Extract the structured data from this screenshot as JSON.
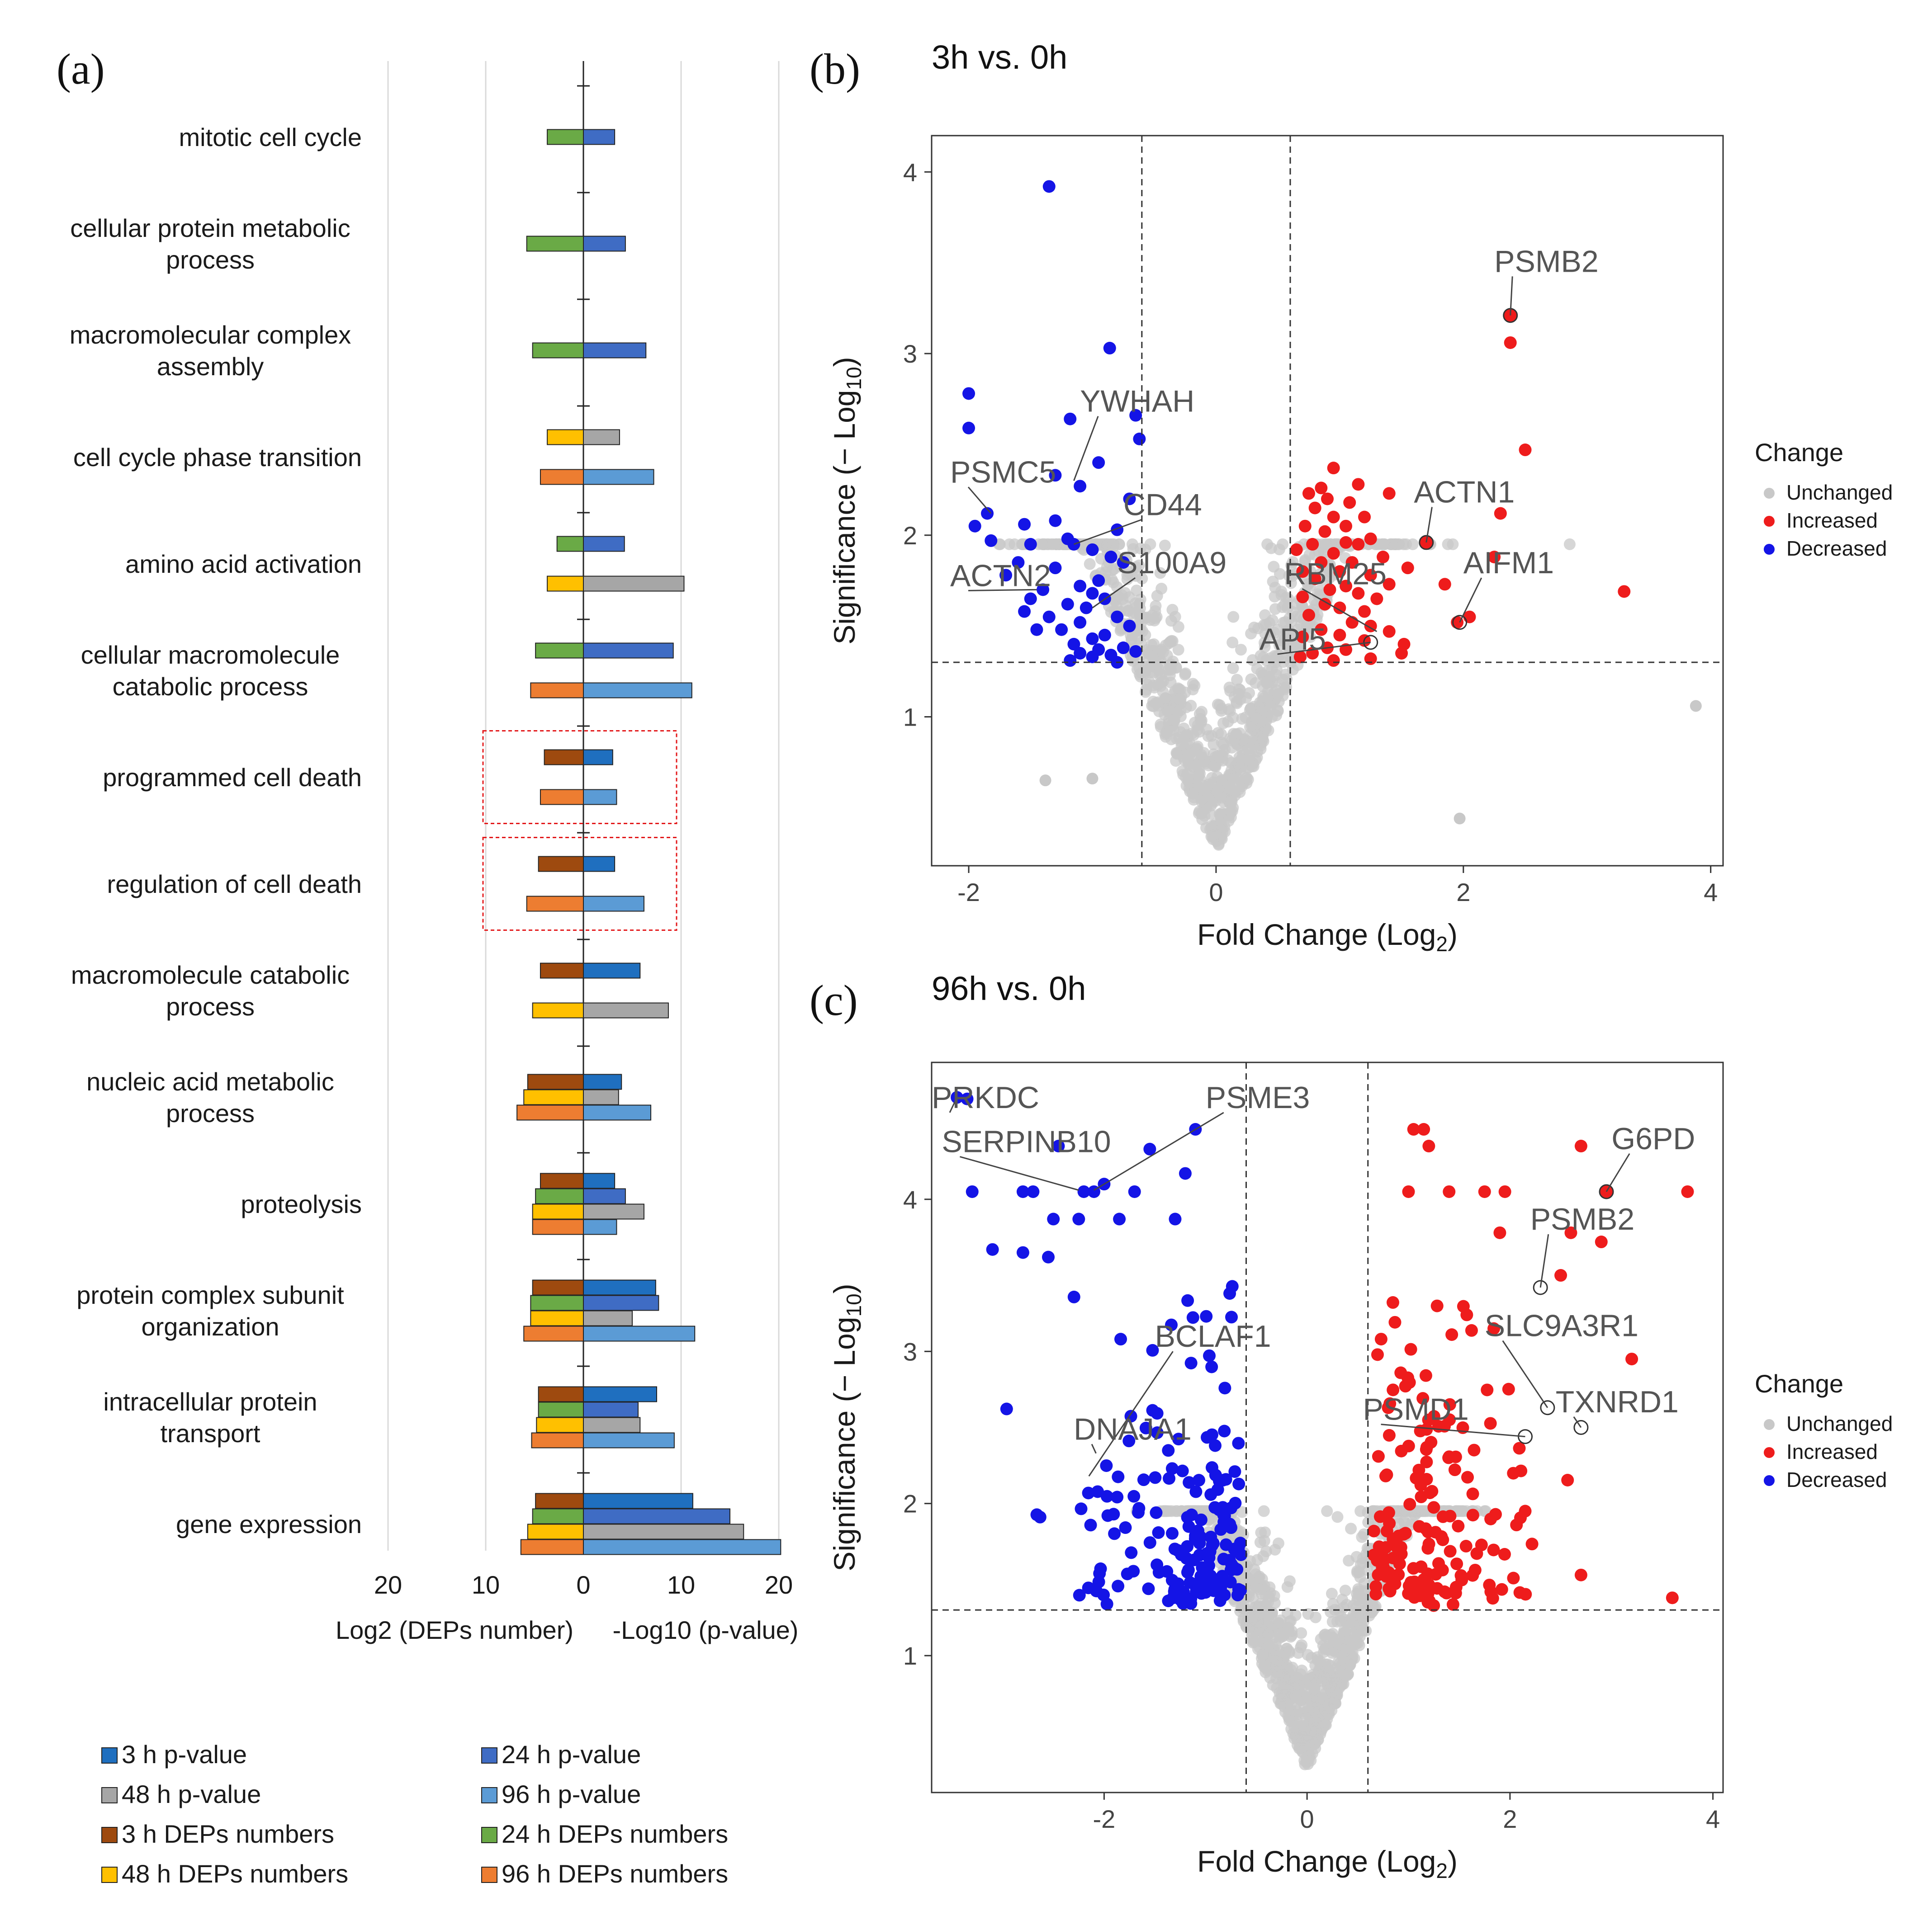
{
  "figure": {
    "panels": [
      {
        "id": "a",
        "label": "(a)"
      },
      {
        "id": "b",
        "label": "(b)",
        "title": "3h vs. 0h"
      },
      {
        "id": "c",
        "label": "(c)",
        "title": "96h vs. 0h"
      }
    ]
  },
  "chart_data": [
    {
      "panel": "a",
      "type": "bar",
      "orientation": "horizontal-diverging",
      "xlabel_left": "Log2 (DEPs number)",
      "xlabel_right": "-Log10  (p-value)",
      "left_axis_ticks": [
        20,
        10,
        0
      ],
      "right_axis_ticks": [
        10,
        20
      ],
      "xlim_left": [
        0,
        20
      ],
      "xlim_right": [
        0,
        20
      ],
      "legend": [
        {
          "key": "p3",
          "label": "3 h p-value",
          "color": "#1f6fbf"
        },
        {
          "key": "p24",
          "label": "24 h p-value",
          "color": "#3f6cc4"
        },
        {
          "key": "p48",
          "label": "48 h p-value",
          "color": "#a6a6a6"
        },
        {
          "key": "p96",
          "label": "96 h p-value",
          "color": "#5b9bd5"
        },
        {
          "key": "d3",
          "label": "3 h DEPs numbers",
          "color": "#9e4a0f"
        },
        {
          "key": "d24",
          "label": "24 h DEPs numbers",
          "color": "#6aaa46"
        },
        {
          "key": "d48",
          "label": "48 h DEPs numbers",
          "color": "#ffc000"
        },
        {
          "key": "d96",
          "label": "96 h DEPs numbers",
          "color": "#ed7d31"
        }
      ],
      "categories": [
        {
          "label": "mitotic cell cycle",
          "deps": {
            "d24": 3.7
          },
          "pval": {
            "p24": 3.2
          }
        },
        {
          "label": "cellular protein metabolic\nprocess",
          "deps": {
            "d24": 5.8
          },
          "pval": {
            "p24": 4.3
          }
        },
        {
          "label": "macromolecular complex\nassembly",
          "deps": {
            "d24": 5.2
          },
          "pval": {
            "p24": 6.4
          }
        },
        {
          "label": "cell cycle phase transition",
          "deps": {
            "d48": 3.7,
            "d96": 4.4
          },
          "pval": {
            "p48": 3.7,
            "p96": 7.2
          }
        },
        {
          "label": "amino acid activation",
          "deps": {
            "d24": 2.7,
            "d48": 3.7
          },
          "pval": {
            "p24": 4.2,
            "p48": 10.3
          }
        },
        {
          "label": "cellular macromolecule\ncatabolic process",
          "deps": {
            "d24": 4.9,
            "d96": 5.4
          },
          "pval": {
            "p24": 9.2,
            "p96": 11.1
          }
        },
        {
          "label": "programmed cell death",
          "deps": {
            "d3": 4.0,
            "d96": 4.4
          },
          "pval": {
            "p3": 3.0,
            "p96": 3.4
          },
          "highlight": true
        },
        {
          "label": "regulation of cell death",
          "deps": {
            "d3": 4.6,
            "d96": 5.8
          },
          "pval": {
            "p3": 3.2,
            "p96": 6.2
          },
          "highlight": true
        },
        {
          "label": "macromolecule catabolic\nprocess",
          "deps": {
            "d3": 4.4,
            "d48": 5.2
          },
          "pval": {
            "p3": 5.8,
            "p48": 8.7
          }
        },
        {
          "label": "nucleic acid metabolic\nprocess",
          "deps": {
            "d3": 5.7,
            "d48": 6.1,
            "d96": 6.8
          },
          "pval": {
            "p3": 3.9,
            "p48": 3.6,
            "p96": 6.9
          }
        },
        {
          "label": "proteolysis",
          "deps": {
            "d3": 4.4,
            "d24": 4.9,
            "d48": 5.2,
            "d96": 5.2
          },
          "pval": {
            "p3": 3.2,
            "p24": 4.3,
            "p48": 6.2,
            "p96": 3.4
          }
        },
        {
          "label": "protein complex subunit\norganization",
          "deps": {
            "d3": 5.2,
            "d24": 5.4,
            "d48": 5.4,
            "d96": 6.1
          },
          "pval": {
            "p3": 7.4,
            "p24": 7.7,
            "p48": 5.0,
            "p96": 11.4
          }
        },
        {
          "label": "intracellular protein\ntransport",
          "deps": {
            "d3": 4.6,
            "d24": 4.6,
            "d48": 4.8,
            "d96": 5.3
          },
          "pval": {
            "p3": 7.5,
            "p24": 5.6,
            "p48": 5.8,
            "p96": 9.3
          }
        },
        {
          "label": "gene expression",
          "deps": {
            "d3": 4.9,
            "d24": 5.2,
            "d48": 5.7,
            "d96": 6.4
          },
          "pval": {
            "p3": 11.2,
            "p24": 15.0,
            "p48": 16.4,
            "p96": 20.2
          }
        }
      ]
    },
    {
      "panel": "b",
      "type": "scatter",
      "title": "3h vs. 0h",
      "xlabel": "Fold Change (Log",
      "xlabel_sub": "2",
      "xlabel_end": ")",
      "ylabel": "Significance (− Log",
      "ylabel_sub": "10",
      "ylabel_end": ")",
      "xlim": [
        -2.3,
        4.1
      ],
      "ylim": [
        0.18,
        4.2
      ],
      "xticks": [
        -2,
        0,
        2,
        4
      ],
      "xtick_labels": [
        "-2",
        "0",
        "2",
        "4"
      ],
      "yticks": [
        1,
        2,
        3,
        4
      ],
      "ytick_labels": [
        "1",
        "2",
        "3",
        "4"
      ],
      "vlines": [
        -0.6,
        0.6
      ],
      "hline": 1.3,
      "legend_title": "Change",
      "legend_entries": [
        {
          "label": "Unchanged",
          "color": "#c8c8c8"
        },
        {
          "label": "Increased",
          "color": "#ee1c1c"
        },
        {
          "label": "Decreased",
          "color": "#1414e6"
        }
      ],
      "gray_seed": 11,
      "gray_count": 950,
      "decreased": [
        [
          -1.35,
          3.92
        ],
        [
          -0.86,
          3.03
        ],
        [
          -2.0,
          2.78
        ],
        [
          -0.65,
          2.66
        ],
        [
          -1.18,
          2.64
        ],
        [
          -2.0,
          2.59
        ],
        [
          -0.62,
          2.53
        ],
        [
          -0.95,
          2.4
        ],
        [
          -1.3,
          2.33
        ],
        [
          -1.1,
          2.27
        ],
        [
          -0.7,
          2.2
        ],
        [
          -1.85,
          2.12
        ],
        [
          -1.3,
          2.08
        ],
        [
          -1.55,
          2.06
        ],
        [
          -1.95,
          2.05
        ],
        [
          -0.8,
          2.03
        ],
        [
          -1.2,
          1.98
        ],
        [
          -1.82,
          1.97
        ],
        [
          -1.5,
          1.95
        ],
        [
          -1.15,
          1.95
        ],
        [
          -1.0,
          1.92
        ],
        [
          -0.85,
          1.88
        ],
        [
          -1.6,
          1.85
        ],
        [
          -0.75,
          1.85
        ],
        [
          -1.3,
          1.82
        ],
        [
          -1.7,
          1.78
        ],
        [
          -0.95,
          1.75
        ],
        [
          -1.1,
          1.72
        ],
        [
          -1.4,
          1.7
        ],
        [
          -1.0,
          1.68
        ],
        [
          -1.5,
          1.65
        ],
        [
          -0.9,
          1.65
        ],
        [
          -1.2,
          1.62
        ],
        [
          -1.05,
          1.6
        ],
        [
          -1.55,
          1.58
        ],
        [
          -1.35,
          1.55
        ],
        [
          -0.8,
          1.55
        ],
        [
          -1.1,
          1.52
        ],
        [
          -0.7,
          1.5
        ],
        [
          -1.45,
          1.48
        ],
        [
          -1.25,
          1.48
        ],
        [
          -0.9,
          1.45
        ],
        [
          -1.0,
          1.43
        ],
        [
          -1.15,
          1.4
        ],
        [
          -0.75,
          1.38
        ],
        [
          -0.95,
          1.37
        ],
        [
          -0.65,
          1.36
        ],
        [
          -1.1,
          1.35
        ],
        [
          -0.85,
          1.34
        ],
        [
          -1.0,
          1.33
        ],
        [
          -1.18,
          1.31
        ],
        [
          -0.8,
          1.3
        ]
      ],
      "increased": [
        [
          2.38,
          3.21
        ],
        [
          2.38,
          3.06
        ],
        [
          2.5,
          2.47
        ],
        [
          0.95,
          2.37
        ],
        [
          1.15,
          2.28
        ],
        [
          0.85,
          2.26
        ],
        [
          0.75,
          2.23
        ],
        [
          1.4,
          2.23
        ],
        [
          0.9,
          2.2
        ],
        [
          1.08,
          2.18
        ],
        [
          0.8,
          2.15
        ],
        [
          2.3,
          2.12
        ],
        [
          0.95,
          2.1
        ],
        [
          1.2,
          2.1
        ],
        [
          1.05,
          2.05
        ],
        [
          0.72,
          2.05
        ],
        [
          0.88,
          2.02
        ],
        [
          1.25,
          1.98
        ],
        [
          1.05,
          1.96
        ],
        [
          1.7,
          1.96
        ],
        [
          0.78,
          1.95
        ],
        [
          1.15,
          1.95
        ],
        [
          0.65,
          1.92
        ],
        [
          0.95,
          1.9
        ],
        [
          2.25,
          1.88
        ],
        [
          1.35,
          1.88
        ],
        [
          0.85,
          1.85
        ],
        [
          1.1,
          1.85
        ],
        [
          1.55,
          1.82
        ],
        [
          0.7,
          1.8
        ],
        [
          1.0,
          1.8
        ],
        [
          1.25,
          1.78
        ],
        [
          0.8,
          1.76
        ],
        [
          1.85,
          1.73
        ],
        [
          1.4,
          1.73
        ],
        [
          1.05,
          1.72
        ],
        [
          3.3,
          1.69
        ],
        [
          0.92,
          1.7
        ],
        [
          1.15,
          1.68
        ],
        [
          0.7,
          1.66
        ],
        [
          1.3,
          1.65
        ],
        [
          0.88,
          1.62
        ],
        [
          1.0,
          1.6
        ],
        [
          1.2,
          1.58
        ],
        [
          2.05,
          1.55
        ],
        [
          0.75,
          1.56
        ],
        [
          1.95,
          1.52
        ],
        [
          1.1,
          1.52
        ],
        [
          1.25,
          1.5
        ],
        [
          0.85,
          1.48
        ],
        [
          1.4,
          1.47
        ],
        [
          1.0,
          1.45
        ],
        [
          0.7,
          1.44
        ],
        [
          1.2,
          1.42
        ],
        [
          1.52,
          1.4
        ],
        [
          0.9,
          1.38
        ],
        [
          1.05,
          1.37
        ],
        [
          0.78,
          1.35
        ],
        [
          1.5,
          1.35
        ],
        [
          0.68,
          1.33
        ],
        [
          1.25,
          1.32
        ],
        [
          0.95,
          1.31
        ]
      ],
      "labels": [
        {
          "text": "PSMB2",
          "x": 2.38,
          "y": 3.21,
          "lx": 2.25,
          "ly": 3.45
        },
        {
          "text": "YWHAH",
          "x": -1.15,
          "y": 2.3,
          "lx": -1.1,
          "ly": 2.68
        },
        {
          "text": "PSMC5",
          "x": -1.82,
          "y": 2.12,
          "lx": -2.15,
          "ly": 2.29
        },
        {
          "text": "CD44",
          "x": -1.15,
          "y": 1.95,
          "lx": -0.75,
          "ly": 2.11
        },
        {
          "text": "ACTN1",
          "x": 1.7,
          "y": 1.96,
          "lx": 1.6,
          "ly": 2.18
        },
        {
          "text": "ACTN2",
          "x": -1.45,
          "y": 1.7,
          "lx": -2.15,
          "ly": 1.72
        },
        {
          "text": "S100A9",
          "x": -1.0,
          "y": 1.6,
          "lx": -0.8,
          "ly": 1.79
        },
        {
          "text": "RBM25",
          "x": 1.3,
          "y": 1.47,
          "lx": 0.55,
          "ly": 1.73
        },
        {
          "text": "AIFM1",
          "x": 1.97,
          "y": 1.52,
          "lx": 2.0,
          "ly": 1.79
        },
        {
          "text": "API5",
          "x": 1.25,
          "y": 1.41,
          "lx": 0.35,
          "ly": 1.37
        }
      ],
      "outlined": [
        [
          2.38,
          3.21
        ],
        [
          1.7,
          1.96
        ],
        [
          1.97,
          1.52
        ],
        [
          1.25,
          1.41
        ]
      ],
      "extra_gray": [
        [
          3.88,
          1.06
        ],
        [
          1.97,
          0.44
        ],
        [
          -1.38,
          0.65
        ],
        [
          -1.0,
          0.66
        ]
      ]
    },
    {
      "panel": "c",
      "type": "scatter",
      "title": "96h vs. 0h",
      "xlabel": "Fold Change (Log",
      "xlabel_sub": "2",
      "xlabel_end": ")",
      "ylabel": "Significance (− Log",
      "ylabel_sub": "10",
      "ylabel_end": ")",
      "xlim": [
        -3.7,
        4.1
      ],
      "ylim": [
        0.1,
        4.9
      ],
      "xticks": [
        -2,
        0,
        2,
        4
      ],
      "xtick_labels": [
        "-2",
        "0",
        "2",
        "4"
      ],
      "yticks": [
        1,
        2,
        3,
        4
      ],
      "ytick_labels": [
        "1",
        "2",
        "3",
        "4"
      ],
      "vlines": [
        -0.6,
        0.6
      ],
      "hline": 1.3,
      "legend_title": "Change",
      "legend_entries": [
        {
          "label": "Unchanged",
          "color": "#c8c8c8"
        },
        {
          "label": "Increased",
          "color": "#ee1c1c"
        },
        {
          "label": "Decreased",
          "color": "#1414e6"
        }
      ],
      "gray_seed": 29,
      "gray_count": 1000,
      "blue_seed": 7,
      "blue_count": 170,
      "red_seed": 17,
      "red_count": 170,
      "decreased": [
        [
          -3.45,
          4.67
        ],
        [
          -3.35,
          4.66
        ],
        [
          -1.1,
          4.46
        ],
        [
          -2.45,
          4.35
        ],
        [
          -1.55,
          4.33
        ],
        [
          -1.2,
          4.17
        ],
        [
          -3.3,
          4.05
        ],
        [
          -2.8,
          4.05
        ],
        [
          -2.7,
          4.05
        ],
        [
          -2.2,
          4.05
        ],
        [
          -2.1,
          4.05
        ],
        [
          -2.0,
          4.1
        ],
        [
          -1.7,
          4.05
        ],
        [
          -2.5,
          3.87
        ],
        [
          -2.25,
          3.87
        ],
        [
          -1.85,
          3.87
        ],
        [
          -1.3,
          3.87
        ],
        [
          -3.1,
          3.67
        ],
        [
          -2.8,
          3.65
        ],
        [
          -2.55,
          3.62
        ]
      ],
      "increased": [
        [
          1.05,
          4.46
        ],
        [
          1.15,
          4.46
        ],
        [
          2.7,
          4.35
        ],
        [
          1.2,
          4.35
        ],
        [
          2.95,
          4.05
        ],
        [
          3.75,
          4.05
        ],
        [
          1.0,
          4.05
        ],
        [
          1.4,
          4.05
        ],
        [
          1.75,
          4.05
        ],
        [
          1.95,
          4.05
        ],
        [
          1.9,
          3.78
        ],
        [
          2.6,
          3.78
        ],
        [
          2.5,
          3.5
        ],
        [
          2.9,
          3.72
        ],
        [
          3.2,
          2.95
        ],
        [
          3.6,
          1.38
        ],
        [
          2.7,
          1.53
        ],
        [
          2.15,
          1.95
        ]
      ],
      "labels": [
        {
          "text": "PRKDC",
          "x": -3.45,
          "y": 4.67,
          "lx": -3.7,
          "ly": 4.6
        },
        {
          "text": "PSME3",
          "x": -2.1,
          "y": 4.06,
          "lx": -1.0,
          "ly": 4.6
        },
        {
          "text": "SERPINB10",
          "x": -2.25,
          "y": 4.06,
          "lx": -3.6,
          "ly": 4.31
        },
        {
          "text": "G6PD",
          "x": 2.95,
          "y": 4.05,
          "lx": 3.0,
          "ly": 4.33
        },
        {
          "text": "PSMB2",
          "x": 2.3,
          "y": 3.42,
          "lx": 2.2,
          "ly": 3.8
        },
        {
          "text": "SLC9A3R1",
          "x": 2.37,
          "y": 2.63,
          "lx": 1.75,
          "ly": 3.1
        },
        {
          "text": "BCLAF1",
          "x": -2.15,
          "y": 2.18,
          "lx": -1.5,
          "ly": 3.03
        },
        {
          "text": "TXNRD1",
          "x": 2.7,
          "y": 2.5,
          "lx": 2.45,
          "ly": 2.6
        },
        {
          "text": "PSMD1",
          "x": 2.15,
          "y": 2.44,
          "lx": 0.55,
          "ly": 2.55
        },
        {
          "text": "DNAJA1",
          "x": -2.08,
          "y": 2.33,
          "lx": -2.3,
          "ly": 2.42
        }
      ],
      "outlined": [
        [
          2.95,
          4.05
        ],
        [
          2.3,
          3.42
        ],
        [
          2.37,
          2.63
        ],
        [
          2.7,
          2.5
        ],
        [
          2.15,
          2.44
        ]
      ]
    }
  ]
}
